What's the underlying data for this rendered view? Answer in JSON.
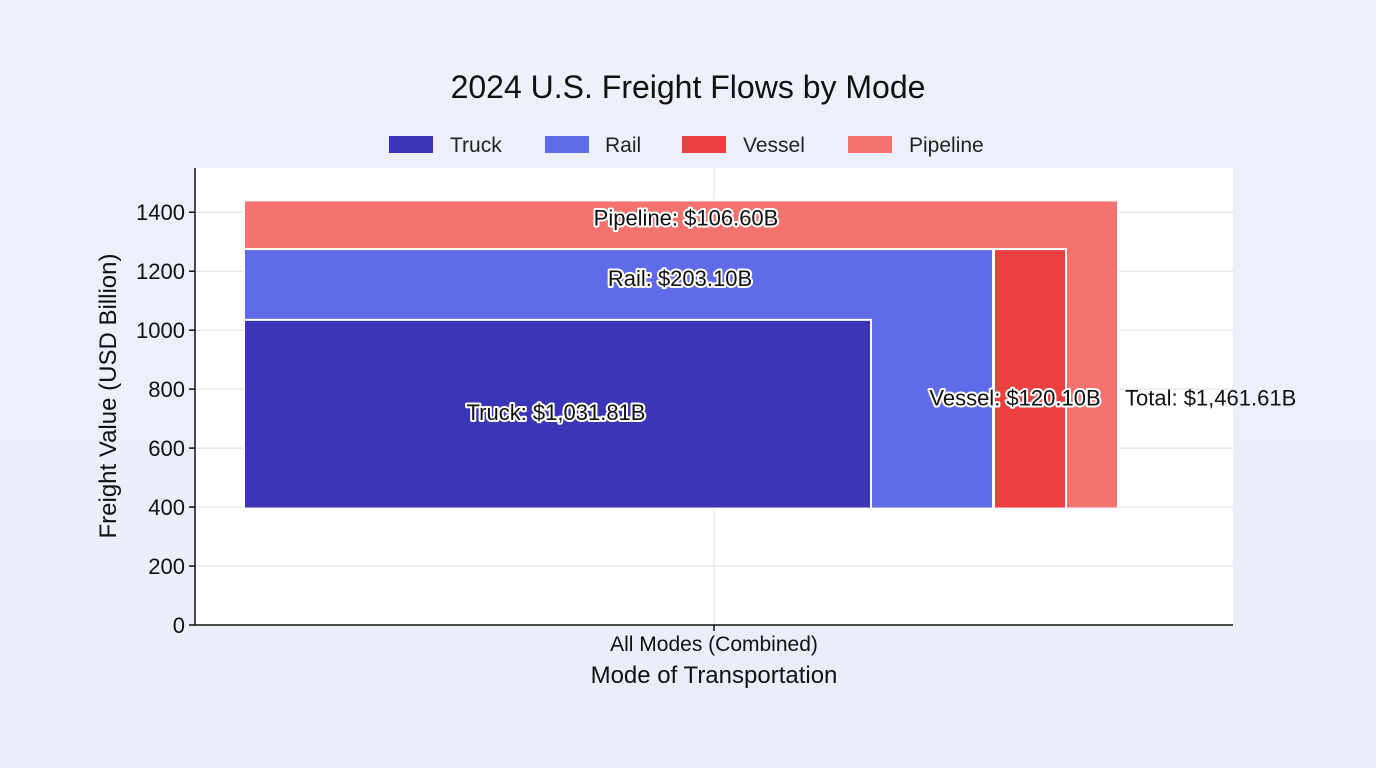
{
  "chart_data": {
    "type": "bar",
    "title": "2024 U.S. Freight Flows by Mode",
    "xlabel": "Mode of Transportation",
    "ylabel": "Freight Value (USD Billion)",
    "categories": [
      "All Modes (Combined)"
    ],
    "ylim": [
      0,
      1550
    ],
    "yticks": [
      0,
      200,
      400,
      600,
      800,
      1000,
      1200,
      1400
    ],
    "grid": true,
    "legend_position": "top-center",
    "series": [
      {
        "name": "Truck",
        "color": "#3b36b8",
        "y_bottom": 395,
        "y_top": 1035,
        "value": 1031.81,
        "label": "Truck: $1,031.81B"
      },
      {
        "name": "Rail",
        "color": "#5f6be8",
        "y_bottom": 395,
        "y_top": 1275,
        "value": 203.1,
        "label": "Rail: $203.10B"
      },
      {
        "name": "Vessel",
        "color": "#ec4040",
        "y_bottom": 395,
        "y_top": 1275,
        "value": 120.1,
        "label": "Vessel: $120.10B"
      },
      {
        "name": "Pipeline",
        "color": "#f5736f",
        "y_bottom": 395,
        "y_top": 1440,
        "value": 106.6,
        "label": "Pipeline: $106.60B"
      }
    ],
    "total_label": "Total: $1,461.61B"
  }
}
